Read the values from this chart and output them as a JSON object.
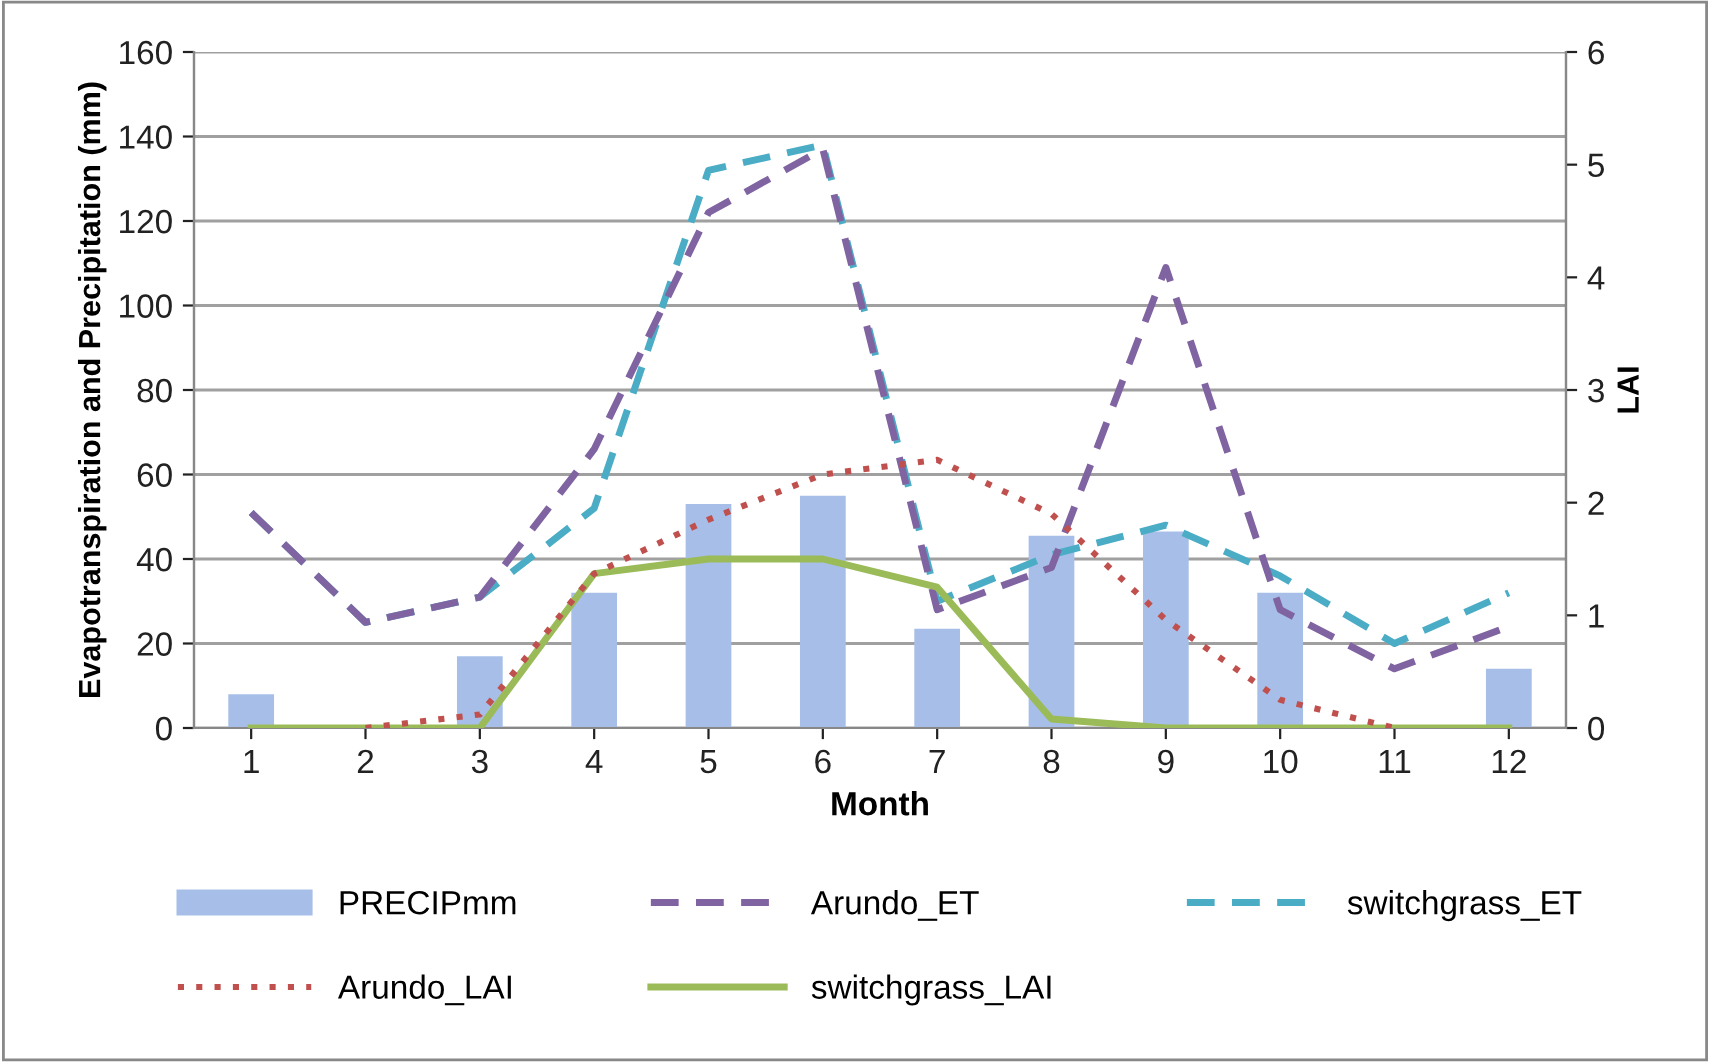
{
  "chart_data": {
    "type": "bar",
    "xlabel": "Month",
    "ylabel": "Evapotranspiration and Precipitation (mm)",
    "y2label": "LAI",
    "categories": [
      "1",
      "2",
      "3",
      "4",
      "5",
      "6",
      "7",
      "8",
      "9",
      "10",
      "11",
      "12"
    ],
    "series": [
      {
        "name": "PRECIPmm",
        "color": "#a7bfe8",
        "values": [
          8,
          null,
          17,
          32,
          53,
          55,
          23.5,
          45.5,
          46.5,
          32,
          null,
          14
        ]
      },
      {
        "name": "Arundo_ET",
        "type": "line",
        "color": "#8064a2",
        "line_style": "dashed",
        "values": [
          51,
          25,
          31,
          66,
          122,
          137,
          28,
          38,
          109,
          28,
          14,
          24
        ]
      },
      {
        "name": "switchgrass_ET",
        "type": "line",
        "color": "#4bacc6",
        "line_style": "dashed",
        "values": [
          51,
          25,
          31,
          52,
          132,
          138,
          30,
          41,
          48,
          36,
          20,
          32
        ]
      },
      {
        "name": "Arundo_LAI",
        "type": "line",
        "color": "#c0504d",
        "line_style": "dotted",
        "axis": "y2",
        "values": [
          null,
          0,
          0.12,
          1.37,
          1.85,
          2.25,
          2.38,
          1.9,
          0.96,
          0.25,
          0,
          null
        ]
      },
      {
        "name": "switchgrass_LAI",
        "type": "line",
        "color": "#9bbb59",
        "line_style": "solid",
        "axis": "y2",
        "values": [
          0,
          0,
          0,
          1.37,
          1.5,
          1.5,
          1.25,
          0.08,
          0,
          0,
          0,
          0
        ]
      }
    ],
    "ylim": [
      0,
      160
    ],
    "yticks": [
      0,
      20,
      40,
      60,
      80,
      100,
      120,
      140,
      160
    ],
    "y2lim": [
      0,
      6
    ],
    "y2ticks": [
      0,
      1,
      2,
      3,
      4,
      5,
      6
    ],
    "grid": "y",
    "legend": "bottom",
    "marker": "none"
  }
}
